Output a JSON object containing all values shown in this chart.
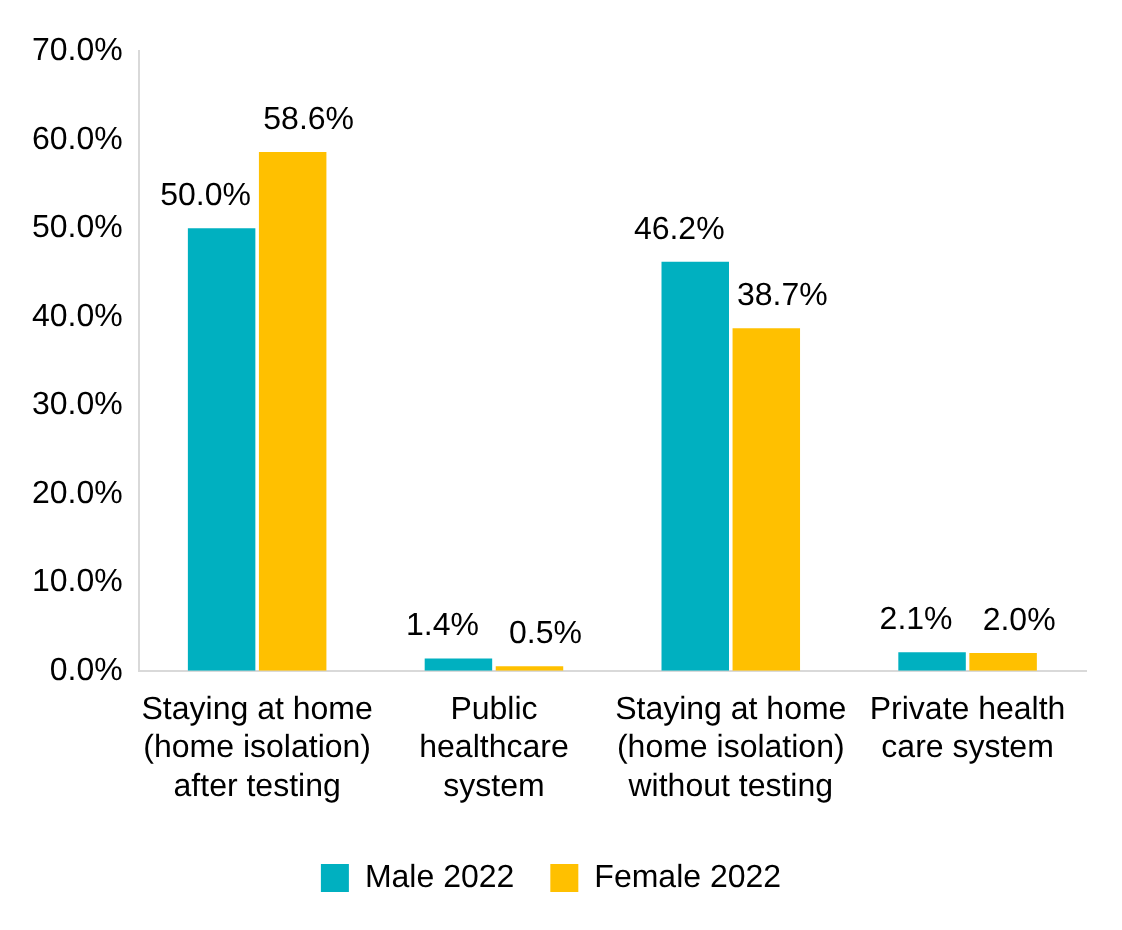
{
  "chart_data": {
    "type": "bar",
    "categories": [
      "Staying at home (home isolation) after testing",
      "Public healthcare system",
      "Staying at home (home isolation) without testing",
      "Private health care system"
    ],
    "series": [
      {
        "name": "Male 2022",
        "color": "#00b0c0",
        "values": [
          50.0,
          1.4,
          46.2,
          2.1
        ],
        "value_labels": [
          "50.0%",
          "1.4%",
          "46.2%",
          "2.1%"
        ]
      },
      {
        "name": "Female 2022",
        "color": "#ffc000",
        "values": [
          58.6,
          0.5,
          38.7,
          2.0
        ],
        "value_labels": [
          "58.6%",
          "0.5%",
          "38.7%",
          "2.0%"
        ]
      }
    ],
    "ylim": [
      0,
      70
    ],
    "yticks": [
      {
        "value": 0,
        "label": "0.0%"
      },
      {
        "value": 10,
        "label": "10.0%"
      },
      {
        "value": 20,
        "label": "20.0%"
      },
      {
        "value": 30,
        "label": "30.0%"
      },
      {
        "value": 40,
        "label": "40.0%"
      },
      {
        "value": 50,
        "label": "50.0%"
      },
      {
        "value": 60,
        "label": "60.0%"
      },
      {
        "value": 70,
        "label": "70.0%"
      }
    ],
    "grid": false,
    "legend": "bottom"
  }
}
